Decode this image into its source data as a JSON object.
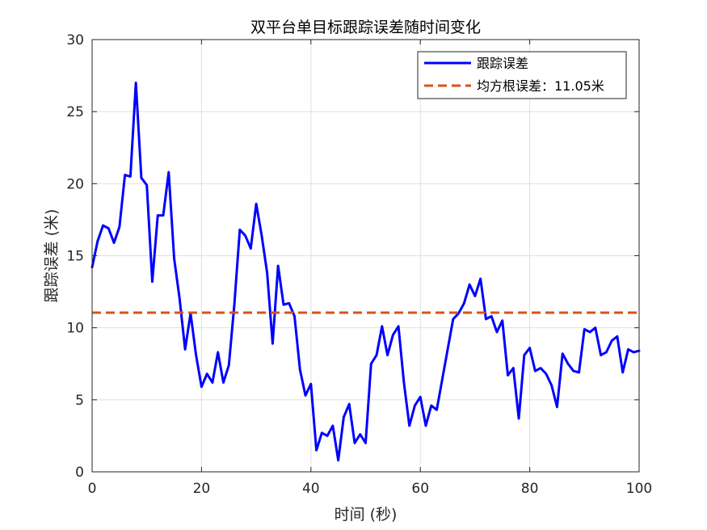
{
  "chart_data": {
    "type": "line",
    "title": "双平台单目标跟踪误差随时间变化",
    "xlabel": "时间 (秒)",
    "ylabel": "跟踪误差 (米)",
    "xlim": [
      0,
      100
    ],
    "ylim": [
      0,
      30
    ],
    "xticks": [
      0,
      20,
      40,
      60,
      80,
      100
    ],
    "yticks": [
      0,
      5,
      10,
      15,
      20,
      25,
      30
    ],
    "grid": true,
    "legend_position": "top-right",
    "series": [
      {
        "name": "跟踪误差",
        "color": "#0000ff",
        "style": "solid",
        "x": [
          0,
          1,
          2,
          3,
          4,
          5,
          6,
          7,
          8,
          9,
          10,
          11,
          12,
          13,
          14,
          15,
          16,
          17,
          18,
          19,
          20,
          21,
          22,
          23,
          24,
          25,
          26,
          27,
          28,
          29,
          30,
          31,
          32,
          33,
          34,
          35,
          36,
          37,
          38,
          39,
          40,
          41,
          42,
          43,
          44,
          45,
          46,
          47,
          48,
          49,
          50,
          51,
          52,
          53,
          54,
          55,
          56,
          57,
          58,
          59,
          60,
          61,
          62,
          63,
          64,
          65,
          66,
          67,
          68,
          69,
          70,
          71,
          72,
          73,
          74,
          75,
          76,
          77,
          78,
          79,
          80,
          81,
          82,
          83,
          84,
          85,
          86,
          87,
          88,
          89,
          90,
          91,
          92,
          93,
          94,
          95,
          96,
          97,
          98,
          99,
          100
        ],
        "y": [
          14.2,
          16.0,
          17.1,
          16.9,
          15.9,
          17.0,
          20.6,
          20.5,
          27.0,
          20.4,
          19.9,
          13.2,
          17.8,
          17.8,
          20.8,
          14.8,
          12.0,
          8.5,
          11.0,
          8.1,
          5.9,
          6.8,
          6.2,
          8.3,
          6.2,
          7.4,
          11.6,
          16.8,
          16.4,
          15.5,
          18.6,
          16.4,
          13.8,
          8.9,
          14.3,
          11.6,
          11.7,
          10.8,
          7.1,
          5.3,
          6.1,
          1.5,
          2.7,
          2.5,
          3.2,
          0.8,
          3.8,
          4.7,
          2.0,
          2.6,
          2.0,
          7.5,
          8.1,
          10.1,
          8.1,
          9.5,
          10.1,
          6.2,
          3.2,
          4.6,
          5.2,
          3.2,
          4.6,
          4.3,
          6.4,
          8.5,
          10.6,
          11.0,
          11.7,
          13.0,
          12.2,
          13.4,
          10.6,
          10.8,
          9.7,
          10.5,
          6.7,
          7.2,
          3.7,
          8.1,
          8.6,
          7.0,
          7.2,
          6.8,
          6.0,
          4.5,
          8.2,
          7.5,
          7.0,
          6.9,
          9.9,
          9.7,
          10.0,
          8.1,
          8.3,
          9.1,
          9.4,
          6.9,
          8.5,
          8.3,
          8.4
        ]
      },
      {
        "name": "均方根误差：11.05米",
        "color": "#d95319",
        "style": "dashed",
        "x": [
          0,
          100
        ],
        "y": [
          11.05,
          11.05
        ]
      }
    ]
  }
}
